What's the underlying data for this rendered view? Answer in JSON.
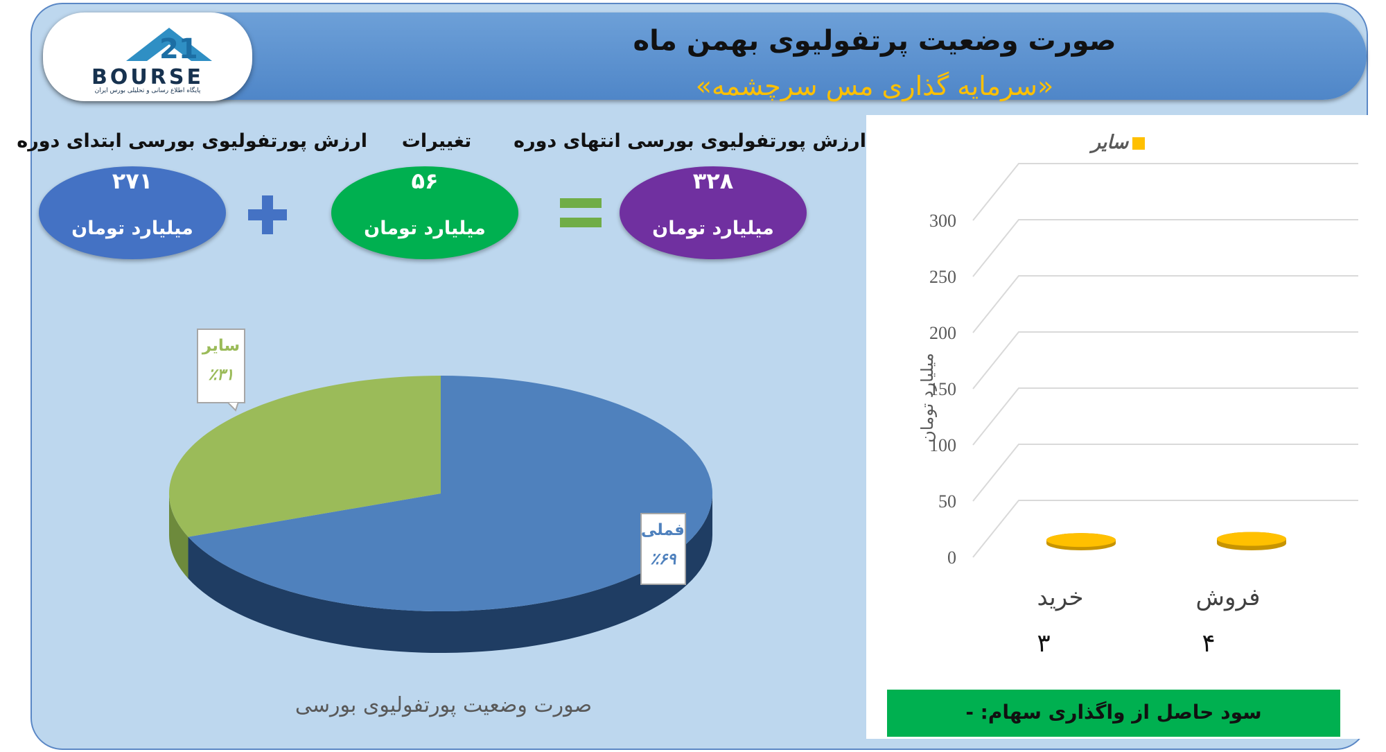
{
  "header": {
    "title": "صورت وضعیت پرتفولیوی بهمن ماه",
    "subtitle": "«سرمایه گذاری مس سرچشمه»"
  },
  "logo": {
    "word": "BOURSE",
    "tagline": "پایگاه اطلاع رسانی و تحلیلی بورس ایران"
  },
  "summary": {
    "start": {
      "label": "ارزش پورتفولیوی بورسی ابتدای دوره",
      "value": "۲۷۱",
      "unit": "میلیارد تومان"
    },
    "change": {
      "label": "تغییرات",
      "value": "۵۶",
      "unit": "میلیارد تومان"
    },
    "end": {
      "label": "ارزش پورتفولیوی بورسی انتهای دوره",
      "value": "۳۲۸",
      "unit": "میلیارد تومان"
    },
    "plus_icon": "plus-icon",
    "equals_icon": "equals-icon"
  },
  "chart_data": [
    {
      "type": "pie",
      "title": "صورت وضعیت پورتفولیوی بورسی",
      "slices": [
        {
          "label": "فملی",
          "value": 69,
          "percent_label": "٪۶۹",
          "color": "#4f81bd"
        },
        {
          "label": "سایر",
          "value": 31,
          "percent_label": "٪۳۱",
          "color": "#9bbb59"
        }
      ]
    },
    {
      "type": "bar",
      "categories": [
        "خرید",
        "فروش"
      ],
      "values": [
        3,
        4
      ],
      "value_labels": [
        "۳",
        "۴"
      ],
      "series": [
        {
          "name": "سایر",
          "values": [
            3,
            4
          ],
          "color": "#ffc000"
        }
      ],
      "ylabel": "میلیارد تومان",
      "ylim": [
        0,
        300
      ],
      "yticks": [
        0,
        50,
        100,
        150,
        200,
        250,
        300
      ],
      "grid": true,
      "legend": "top"
    }
  ],
  "footer": {
    "profit_text": "سود حاصل از واگذاری سهام: -"
  }
}
